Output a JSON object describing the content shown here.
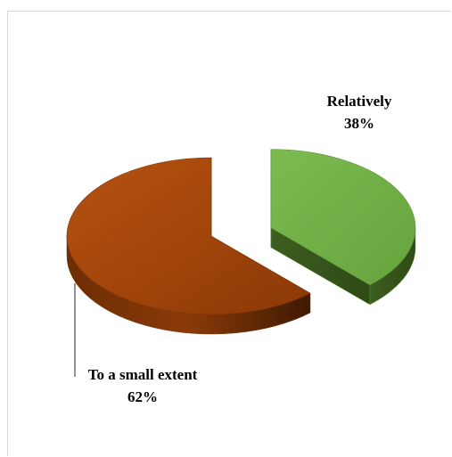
{
  "chart_data": {
    "type": "pie",
    "style": "3d-exploded",
    "title": "",
    "slices": [
      {
        "label": "Relatively",
        "percent_label": "38%",
        "value": 38,
        "color": "#70ad47"
      },
      {
        "label": "To a small extent",
        "percent_label": "62%",
        "value": 62,
        "color": "#a0440a"
      }
    ],
    "legend": "none",
    "data_labels": "outside-with-percent"
  }
}
